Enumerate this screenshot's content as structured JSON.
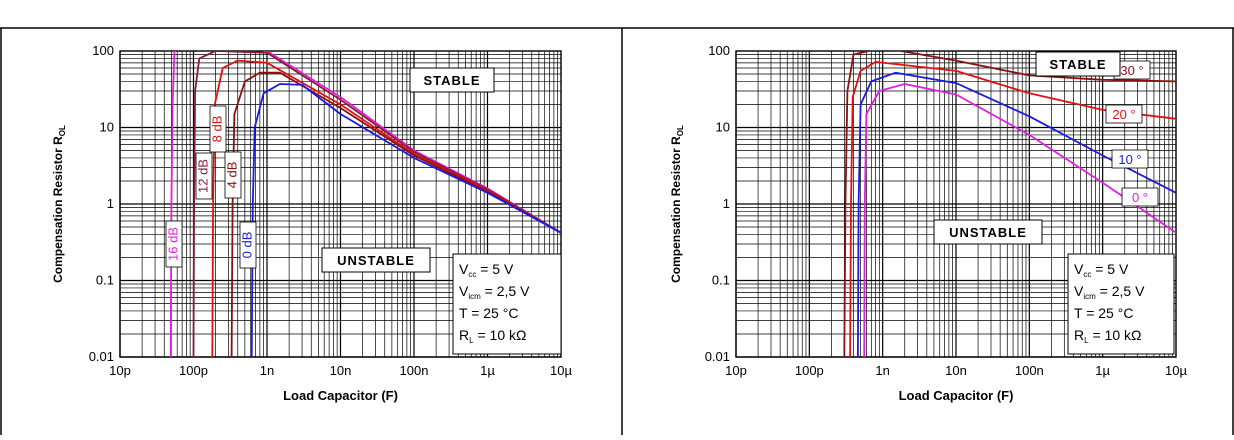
{
  "panels": [
    {
      "ylabel": "Compensation Resistor R",
      "ylabel_sub": "OL",
      "xlabel": "Load Capacitor (F)",
      "stable_label": "STABLE",
      "unstable_label": "UNSTABLE",
      "conditions": [
        {
          "main": "V",
          "sub": "cc",
          "rest": " = 5 V"
        },
        {
          "main": "V",
          "sub": "icm",
          "rest": " = 2,5 V"
        },
        {
          "main": "T = 25 °C",
          "sub": "",
          "rest": ""
        },
        {
          "main": "R",
          "sub": "L",
          "rest": " = 10 kΩ"
        }
      ]
    },
    {
      "ylabel": "Compensation Resistor R",
      "ylabel_sub": "OL",
      "xlabel": "Load Capacitor (F)",
      "stable_label": "STABLE",
      "unstable_label": "UNSTABLE",
      "conditions": [
        {
          "main": "V",
          "sub": "cc",
          "rest": " = 5 V"
        },
        {
          "main": "V",
          "sub": "icm",
          "rest": " = 2,5 V"
        },
        {
          "main": "T = 25 °C",
          "sub": "",
          "rest": ""
        },
        {
          "main": "R",
          "sub": "L",
          "rest": " = 10 kΩ"
        }
      ]
    }
  ],
  "chart_data": [
    {
      "type": "line",
      "xscale": "log",
      "yscale": "log",
      "xlim": [
        1e-11,
        1e-05
      ],
      "ylim": [
        0.01,
        100
      ],
      "xticks": [
        "10p",
        "100p",
        "1n",
        "10n",
        "100n",
        "1µ",
        "10µ"
      ],
      "yticks": [
        "0.01",
        "0.1",
        "1",
        "10",
        "100"
      ],
      "xlabel": "Load Capacitor (F)",
      "ylabel": "Compensation Resistor R OL",
      "grid": true,
      "series": [
        {
          "name": "16 dB",
          "color": "#e020e0",
          "x": [
            4.9e-11,
            5e-11,
            5.2e-11,
            5.5e-11,
            1e-10,
            2e-10,
            1e-09,
            1e-08,
            1e-07,
            1e-06,
            1e-05
          ],
          "y": [
            0.01,
            1,
            20,
            100,
            140,
            130,
            100,
            25,
            5,
            1.6,
            0.42
          ]
        },
        {
          "name": "12 dB",
          "color": "#8b1a3a",
          "x": [
            1e-10,
            1.02e-10,
            1.05e-10,
            1.2e-10,
            2e-10,
            1e-09,
            1e-08,
            1e-07,
            1e-06,
            1e-05
          ],
          "y": [
            0.01,
            1,
            30,
            80,
            100,
            95,
            23,
            4.8,
            1.55,
            0.42
          ]
        },
        {
          "name": "8 dB",
          "color": "#e01010",
          "x": [
            1.8e-10,
            1.85e-10,
            1.95e-10,
            2.5e-10,
            4e-10,
            1e-09,
            1e-08,
            1e-07,
            1e-06,
            1e-05
          ],
          "y": [
            0.01,
            1,
            20,
            60,
            75,
            70,
            20,
            4.5,
            1.5,
            0.42
          ]
        },
        {
          "name": "4 dB",
          "color": "#8b1010",
          "x": [
            3.3e-10,
            3.4e-10,
            3.6e-10,
            5e-10,
            8e-10,
            1.5e-09,
            1e-08,
            1e-07,
            1e-06,
            1e-05
          ],
          "y": [
            0.01,
            1,
            15,
            40,
            52,
            52,
            18,
            4.3,
            1.45,
            0.42
          ]
        },
        {
          "name": "0 dB",
          "color": "#1a1ae0",
          "x": [
            6.2e-10,
            6.4e-10,
            6.8e-10,
            9e-10,
            1.5e-09,
            3e-09,
            1e-08,
            1e-07,
            1e-06,
            1e-05
          ],
          "y": [
            0.01,
            1,
            10,
            28,
            37,
            36,
            15,
            4,
            1.4,
            0.42
          ]
        }
      ],
      "annotations": [
        "STABLE",
        "UNSTABLE",
        "16 dB",
        "12 dB",
        "8 dB",
        "4 dB",
        "0 dB"
      ]
    },
    {
      "type": "line",
      "xscale": "log",
      "yscale": "log",
      "xlim": [
        1e-11,
        1e-05
      ],
      "ylim": [
        0.01,
        100
      ],
      "xticks": [
        "10p",
        "100p",
        "1n",
        "10n",
        "100n",
        "1µ",
        "10µ"
      ],
      "yticks": [
        "0.01",
        "0.1",
        "1",
        "10",
        "100"
      ],
      "xlabel": "Load Capacitor (F)",
      "ylabel": "Compensation Resistor R OL",
      "grid": true,
      "series": [
        {
          "name": "30 °",
          "color": "#8b1010",
          "x": [
            3e-10,
            3.1e-10,
            3.3e-10,
            4e-10,
            1e-09,
            1e-08,
            1e-07,
            1e-06,
            1e-05
          ],
          "y": [
            0.01,
            1,
            30,
            90,
            110,
            75,
            48,
            42,
            40
          ]
        },
        {
          "name": "20 °",
          "color": "#e01010",
          "x": [
            3.6e-10,
            3.7e-10,
            3.9e-10,
            5e-10,
            8e-10,
            1e-08,
            1e-07,
            1e-06,
            1e-05
          ],
          "y": [
            0.01,
            1,
            25,
            55,
            72,
            55,
            28,
            17,
            13
          ]
        },
        {
          "name": "10 °",
          "color": "#1a1ae0",
          "x": [
            4.6e-10,
            4.7e-10,
            5e-10,
            7e-10,
            1.5e-09,
            1e-08,
            1e-07,
            1e-06,
            1e-05
          ],
          "y": [
            0.01,
            1,
            20,
            40,
            52,
            38,
            14,
            4.3,
            1.4
          ]
        },
        {
          "name": "0 °",
          "color": "#e020e0",
          "x": [
            5.6e-10,
            5.7e-10,
            6e-10,
            9e-10,
            2e-09,
            1e-08,
            1e-07,
            1e-06,
            1e-05
          ],
          "y": [
            0.01,
            1,
            15,
            30,
            37,
            27,
            8,
            1.9,
            0.42
          ]
        }
      ],
      "annotations": [
        "STABLE",
        "UNSTABLE",
        "30 °",
        "20 °",
        "10 °",
        "0 °"
      ]
    }
  ]
}
